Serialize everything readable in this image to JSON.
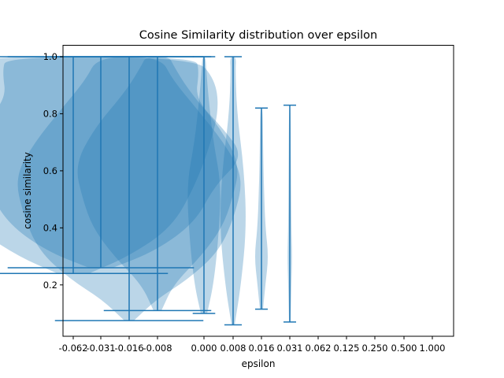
{
  "chart_data": {
    "type": "violin",
    "title": "Cosine Similarity distribution over epsilon",
    "xlabel": "epsilon",
    "ylabel": "cosine similarity",
    "x_tick_labels": [
      "-0.062",
      "-0.031",
      "-0.016",
      "-0.008",
      "0.000",
      "0.008",
      "0.016",
      "0.031",
      "0.062",
      "0.125",
      "0.250",
      "0.500",
      "1.000"
    ],
    "ylim": [
      0.02,
      1.04
    ],
    "y_ticks": [
      0.2,
      0.4,
      0.6,
      0.8,
      1.0
    ],
    "y_tick_labels": [
      "0.2",
      "0.4",
      "0.6",
      "0.8",
      "1.0"
    ],
    "grid": false,
    "color": "#1f77b4",
    "series": [
      {
        "position": "-0.062",
        "min": 0.24,
        "max": 1.0
      },
      {
        "position": "-0.031",
        "min": 0.26,
        "max": 1.0
      },
      {
        "position": "-0.016",
        "min": 0.075,
        "max": 1.0
      },
      {
        "position": "-0.008",
        "min": 0.11,
        "max": 1.0
      },
      {
        "position": "0.000",
        "min": 0.1,
        "max": 1.0
      },
      {
        "position": "0.008",
        "min": 0.06,
        "max": 1.0
      },
      {
        "position": "0.016",
        "min": 0.115,
        "max": 0.82
      },
      {
        "position": "0.031",
        "min": 0.07,
        "max": 0.83
      }
    ]
  }
}
